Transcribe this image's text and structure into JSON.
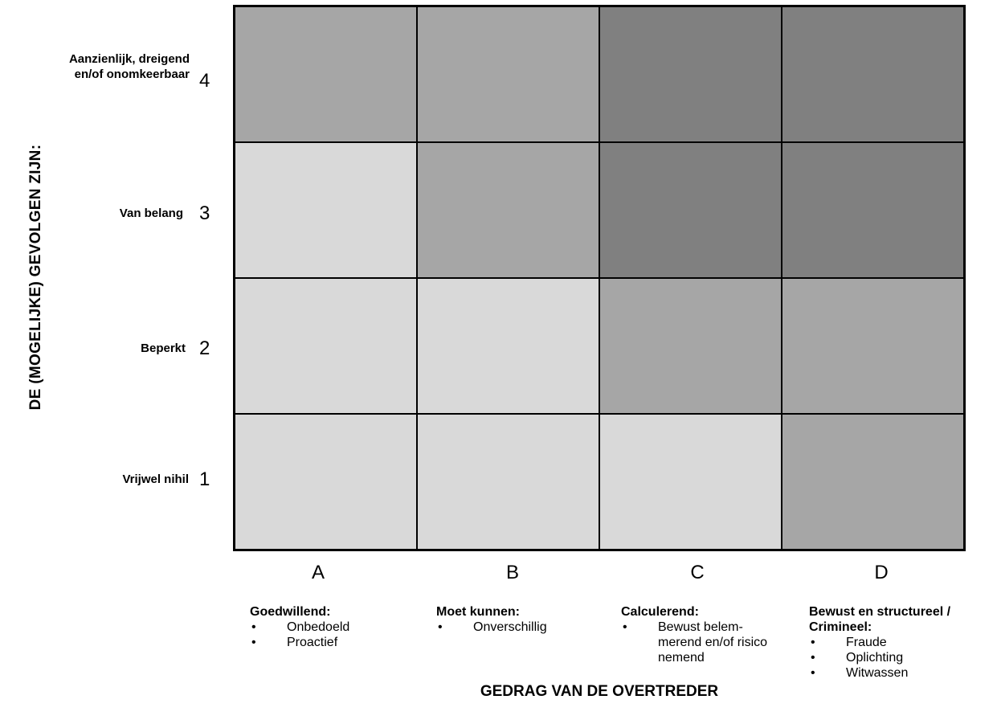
{
  "chart_data": {
    "type": "heatmap",
    "ylabel": "DE (MOGELIJKE) GEVOLGEN ZIJN:",
    "xlabel": "GEDRAG VAN DE OVERTREDER",
    "rows": [
      {
        "num": "4",
        "label": "Aanzienlijk, dreigend en/of onomkeerbaar"
      },
      {
        "num": "3",
        "label": "Van belang"
      },
      {
        "num": "2",
        "label": "Beperkt"
      },
      {
        "num": "1",
        "label": "Vrijwel nihil"
      }
    ],
    "columns": [
      {
        "letter": "A",
        "title": "Goedwillend:",
        "items": [
          "Onbedoeld",
          "Proactief"
        ]
      },
      {
        "letter": "B",
        "title": "Moet kunnen:",
        "items": [
          "Onverschillig"
        ]
      },
      {
        "letter": "C",
        "title": "Calculerend:",
        "items": [
          "Bewust belem-merend en/of risico nemend"
        ]
      },
      {
        "letter": "D",
        "title": "Bewust en structureel / Crimineel:",
        "items": [
          "Fraude",
          "Oplichting",
          "Witwassen"
        ]
      }
    ],
    "levels": [
      [
        2,
        2,
        3,
        3
      ],
      [
        1,
        2,
        3,
        3
      ],
      [
        1,
        1,
        2,
        2
      ],
      [
        1,
        1,
        1,
        2
      ]
    ],
    "level_colors": {
      "1": "#d9d9d9",
      "2": "#a6a6a6",
      "3": "#808080"
    }
  }
}
